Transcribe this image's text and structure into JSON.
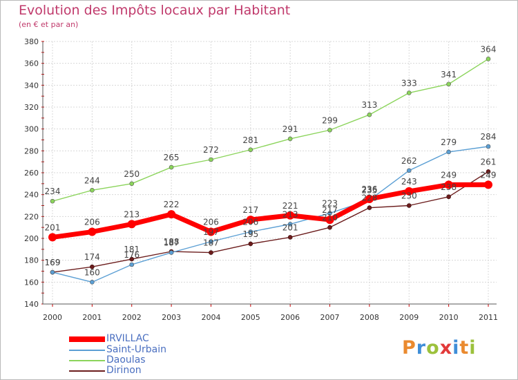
{
  "title": "Evolution des Impôts locaux par Habitant",
  "subtitle": "(en € et par an)",
  "logo": {
    "letters": [
      "P",
      "r",
      "o",
      "x",
      "i",
      "t",
      "i"
    ],
    "colors": [
      "#ea8a2f",
      "#3f8ed8",
      "#9cc13c",
      "#e23a3a",
      "#3f8ed8",
      "#ea8a2f",
      "#9cc13c"
    ]
  },
  "chart_data": {
    "type": "line",
    "title": "Evolution des Impôts locaux par Habitant",
    "subtitle": "(en € et par an)",
    "x": [
      "2000",
      "2001",
      "2002",
      "2003",
      "2004",
      "2005",
      "2006",
      "2007",
      "2008",
      "2009",
      "2010",
      "2011"
    ],
    "ylim": [
      140,
      380
    ],
    "yticks": [
      140,
      160,
      180,
      200,
      220,
      240,
      260,
      280,
      300,
      320,
      340,
      360,
      380
    ],
    "grid": true,
    "legend_position": "bottom-left",
    "series": [
      {
        "name": "IRVILLAC",
        "color": "#ff0000",
        "values": [
          201,
          206,
          213,
          222,
          206,
          217,
          221,
          217,
          236,
          243,
          249,
          249
        ]
      },
      {
        "name": "Saint-Urbain",
        "color": "#5b9fd4",
        "values": [
          169,
          160,
          176,
          187,
          197,
          206,
          213,
          223,
          235,
          262,
          279,
          284
        ]
      },
      {
        "name": "Daoulas",
        "color": "#8bd45b",
        "values": [
          234,
          244,
          250,
          265,
          272,
          281,
          291,
          299,
          313,
          333,
          341,
          364
        ]
      },
      {
        "name": "Dirinon",
        "color": "#6b1c1c",
        "values": [
          169,
          174,
          181,
          188,
          187,
          195,
          201,
          210,
          228,
          230,
          238,
          261
        ]
      }
    ]
  }
}
